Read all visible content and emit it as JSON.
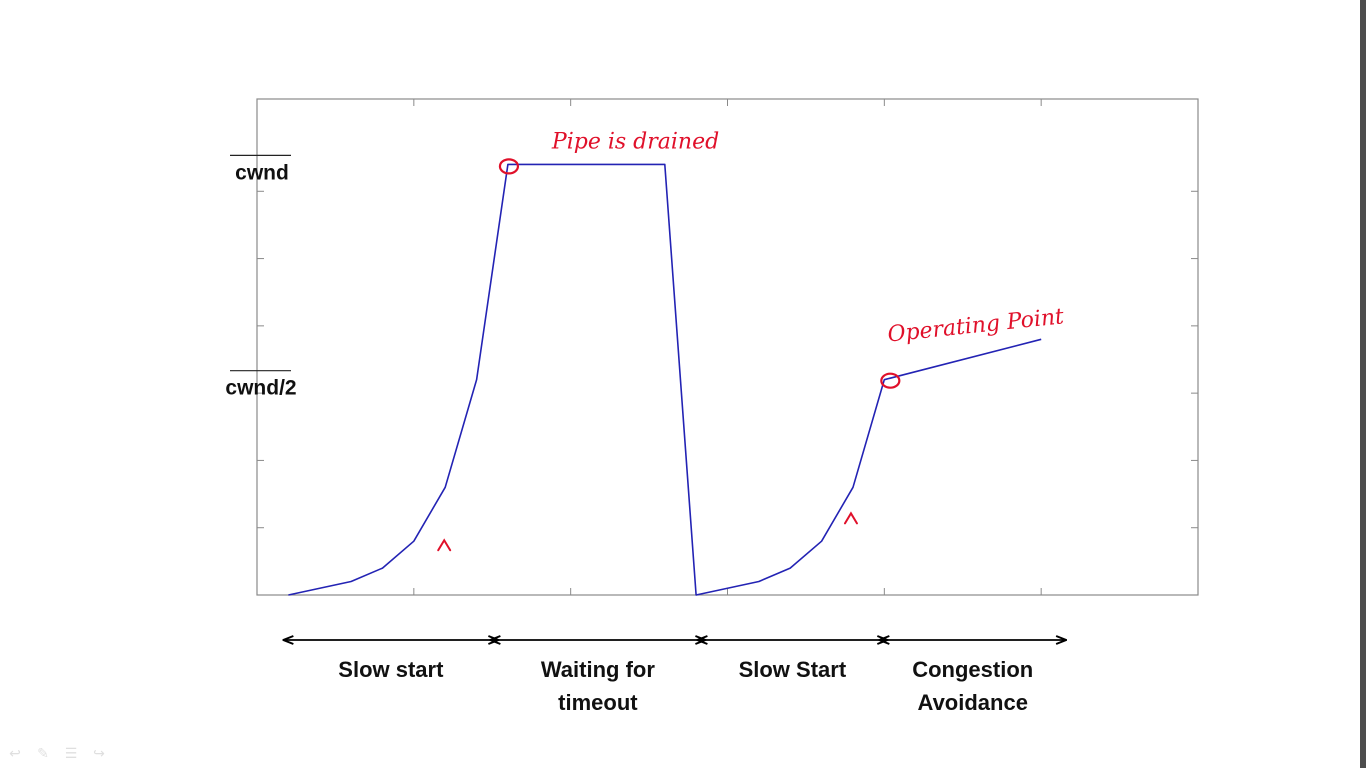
{
  "chart_data": {
    "type": "line",
    "y_tick_labels": [
      "cwnd",
      "cwnd/2"
    ],
    "y_label_values": [
      32,
      16
    ],
    "xlim": [
      0,
      30
    ],
    "ylim": [
      0,
      35
    ],
    "x_ticks": [
      5,
      10,
      15,
      20,
      25,
      30
    ],
    "y_ticks": [
      5,
      10,
      15,
      20,
      25,
      30
    ],
    "series": [
      {
        "color": "#2323b4",
        "points": [
          [
            1,
            0
          ],
          [
            3,
            1
          ],
          [
            4,
            2
          ],
          [
            5,
            4
          ],
          [
            6,
            8
          ],
          [
            7,
            16
          ],
          [
            8,
            32
          ],
          [
            13,
            32
          ],
          [
            14,
            0
          ],
          [
            16,
            1
          ],
          [
            17,
            2
          ],
          [
            18,
            4
          ],
          [
            19,
            8
          ],
          [
            20,
            16
          ],
          [
            25,
            19
          ]
        ]
      }
    ],
    "phases": [
      {
        "label_lines": [
          "Slow start"
        ],
        "from": 1,
        "to": 7.6
      },
      {
        "label_lines": [
          "Waiting for",
          "timeout"
        ],
        "from": 7.6,
        "to": 14.2
      },
      {
        "label_lines": [
          "Slow Start"
        ],
        "from": 14.2,
        "to": 20
      },
      {
        "label_lines": [
          "Congestion",
          "Avoidance"
        ],
        "from": 20,
        "to": 25.7
      }
    ],
    "annotations": [
      {
        "text": "Pipe is drained",
        "x": 8,
        "y": 32
      },
      {
        "text": "Operating Point",
        "x": 20,
        "y": 16
      }
    ]
  },
  "toolbar_icons": [
    "back-icon",
    "pen-icon",
    "menu-icon",
    "forward-icon"
  ]
}
